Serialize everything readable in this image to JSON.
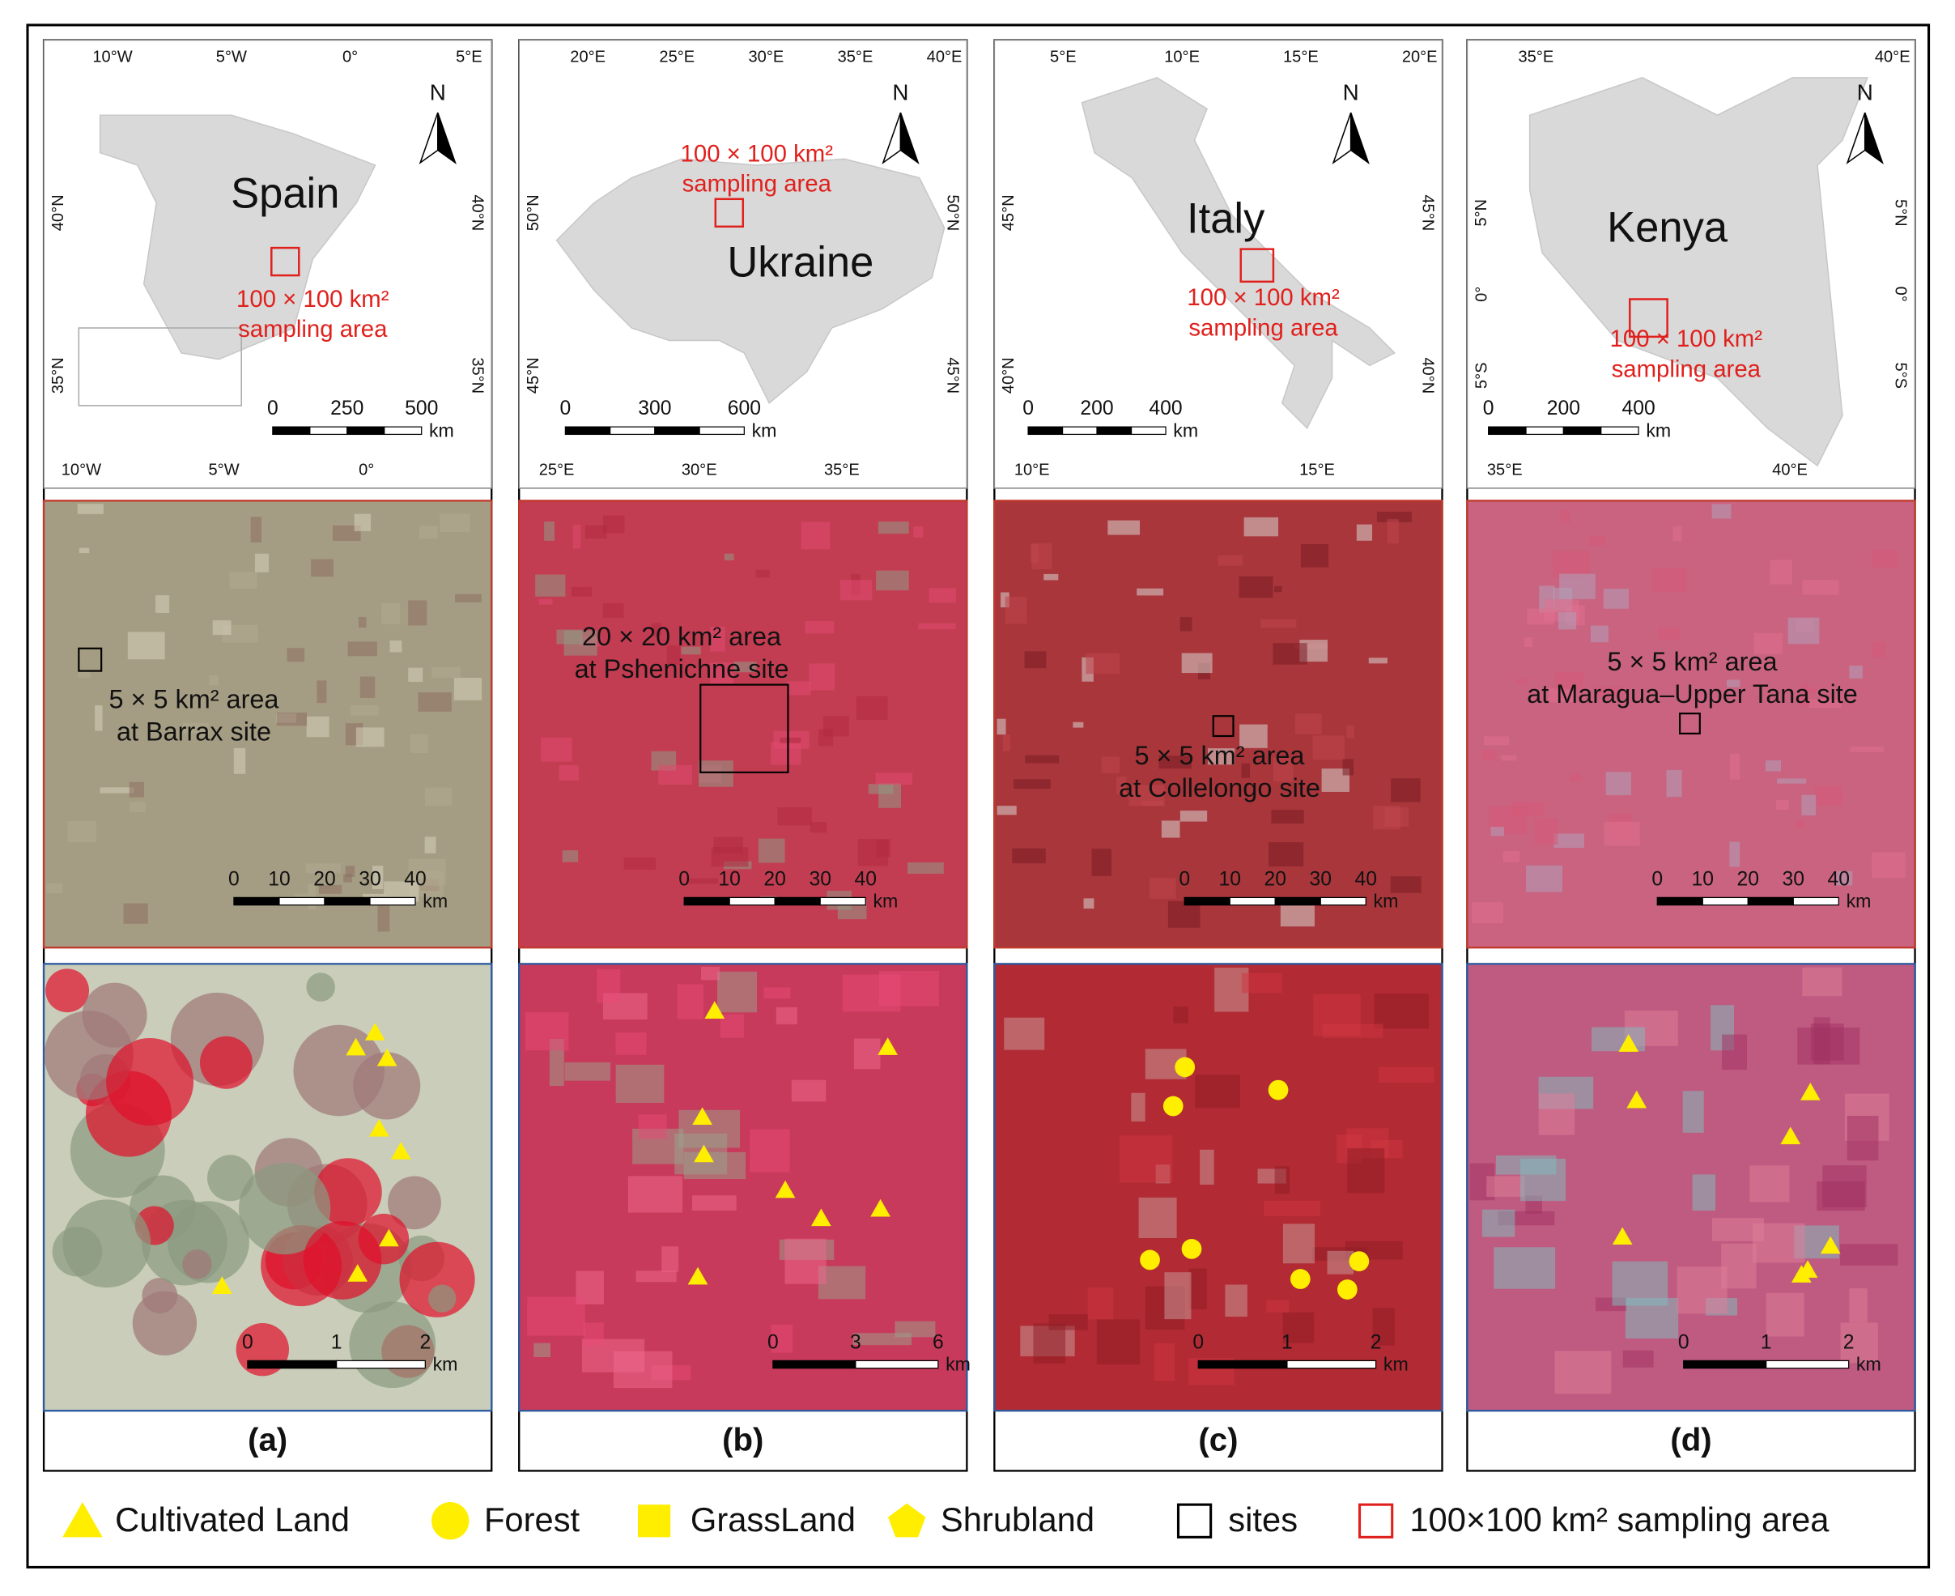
{
  "panels": [
    {
      "label": "(a)",
      "map": {
        "country": "Spain",
        "north": "N",
        "sampling": [
          "100 × 100 km²",
          "sampling area"
        ],
        "top_ticks": [
          "10°W",
          "5°W",
          "0°",
          "5°E"
        ],
        "bottom_ticks": [
          "10°W",
          "5°W",
          "0°"
        ],
        "left_ticks": [
          "40°N",
          "35°N"
        ],
        "right_ticks": [
          "40°N",
          "35°N"
        ],
        "scale": [
          "0",
          "250",
          "500"
        ],
        "unit": "km"
      },
      "regional": {
        "site": [
          "5 × 5 km² area",
          "at Barrax site"
        ],
        "scale": [
          "0",
          "10",
          "20",
          "30",
          "40"
        ],
        "unit": "km"
      },
      "site": {
        "scale": [
          "0",
          "1",
          "2"
        ],
        "unit": "km"
      }
    },
    {
      "label": "(b)",
      "map": {
        "country": "Ukraine",
        "north": "N",
        "sampling": [
          "100 × 100 km²",
          "sampling area"
        ],
        "top_ticks": [
          "20°E",
          "25°E",
          "30°E",
          "35°E",
          "40°E"
        ],
        "bottom_ticks": [
          "25°E",
          "30°E",
          "35°E"
        ],
        "left_ticks": [
          "50°N",
          "45°N"
        ],
        "right_ticks": [
          "50°N",
          "45°N"
        ],
        "scale": [
          "0",
          "300",
          "600"
        ],
        "unit": "km"
      },
      "regional": {
        "site": [
          "20 × 20 km² area",
          "at Pshenichne site"
        ],
        "scale": [
          "0",
          "10",
          "20",
          "30",
          "40"
        ],
        "unit": "km"
      },
      "site": {
        "scale": [
          "0",
          "3",
          "6"
        ],
        "unit": "km"
      }
    },
    {
      "label": "(c)",
      "map": {
        "country": "Italy",
        "north": "N",
        "sampling": [
          "100 × 100 km²",
          "sampling area"
        ],
        "top_ticks": [
          "5°E",
          "10°E",
          "15°E",
          "20°E"
        ],
        "bottom_ticks": [
          "10°E",
          "15°E"
        ],
        "left_ticks": [
          "45°N",
          "40°N"
        ],
        "right_ticks": [
          "45°N",
          "40°N"
        ],
        "scale": [
          "0",
          "200",
          "400"
        ],
        "unit": "km"
      },
      "regional": {
        "site": [
          "5 × 5 km² area",
          "at Collelongo site"
        ],
        "scale": [
          "0",
          "10",
          "20",
          "30",
          "40"
        ],
        "unit": "km"
      },
      "site": {
        "scale": [
          "0",
          "1",
          "2"
        ],
        "unit": "km"
      }
    },
    {
      "label": "(d)",
      "map": {
        "country": "Kenya",
        "north": "N",
        "sampling": [
          "100 × 100 km²",
          "sampling area"
        ],
        "top_ticks": [
          "35°E",
          "40°E"
        ],
        "bottom_ticks": [
          "35°E",
          "40°E"
        ],
        "left_ticks": [
          "5°N",
          "0°",
          "5°S"
        ],
        "right_ticks": [
          "5°N",
          "0°",
          "5°S"
        ],
        "scale": [
          "0",
          "200",
          "400"
        ],
        "unit": "km"
      },
      "regional": {
        "site": [
          "5 × 5 km² area",
          "at Maragua–Upper Tana site"
        ],
        "scale": [
          "0",
          "10",
          "20",
          "30",
          "40"
        ],
        "unit": "km"
      },
      "site": {
        "scale": [
          "0",
          "1",
          "2"
        ],
        "unit": "km"
      }
    }
  ],
  "legend": [
    "Cultivated Land",
    "Forest",
    "GrassLand",
    "Shrubland",
    "sites",
    "100×100 km² sampling area"
  ]
}
